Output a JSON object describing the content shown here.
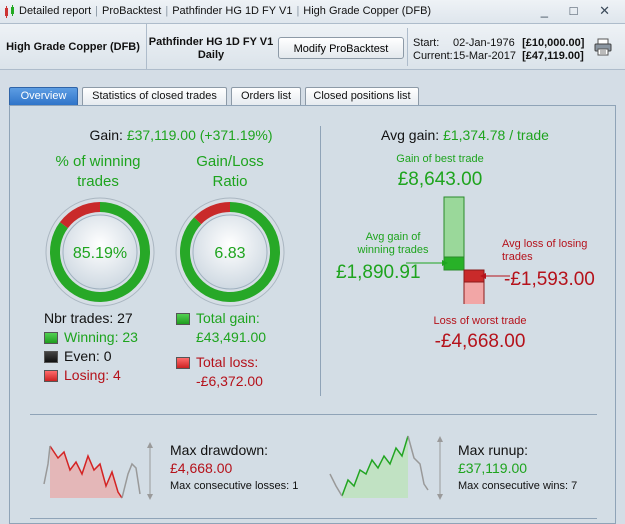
{
  "titlebar": {
    "crumbs": [
      "Detailed report",
      "ProBacktest",
      "Pathfinder HG 1D FY V1",
      "High Grade Copper (DFB)"
    ],
    "window_controls": "_ □ ✕"
  },
  "header": {
    "instrument": "High Grade Copper (DFB)",
    "strategy_name": "Pathfinder HG 1D FY V1",
    "timeframe": "Daily",
    "modify_button": "Modify ProBacktest",
    "start_label": "Start:",
    "start_date": "02-Jan-1976",
    "start_value": "[£10,000.00]",
    "current_label": "Current:",
    "current_date": "15-Mar-2017",
    "current_value": "[£47,119.00]"
  },
  "tabs": [
    {
      "label": "Overview",
      "active": true
    },
    {
      "label": "Statistics of closed trades",
      "active": false
    },
    {
      "label": "Orders list",
      "active": false
    },
    {
      "label": "Closed positions list",
      "active": false
    }
  ],
  "overview": {
    "gain_label": "Gain:",
    "gain_value": "£37,119.00 (+371.19%)",
    "win_title_1": "% of winning",
    "win_title_2": "trades",
    "win_pct_text": "85.19%",
    "win_fraction": 0.8519,
    "ratio_title_1": "Gain/Loss",
    "ratio_title_2": "Ratio",
    "ratio_text": "6.83",
    "ratio_fraction": 0.8722,
    "nbr_trades": "Nbr trades: 27",
    "winning": "Winning: 23",
    "even": "Even: 0",
    "losing": "Losing: 4",
    "total_gain_label": "Total gain:",
    "total_gain_value": "£43,491.00",
    "total_loss_label": "Total loss:",
    "total_loss_value": "-£6,372.00",
    "avg_gain_label": "Avg gain:",
    "avg_gain_value": "£1,374.78 / trade",
    "best_trade_label": "Gain of best trade",
    "best_trade_value": "£8,643.00",
    "avg_win_label_1": "Avg gain of",
    "avg_win_label_2": "winning trades",
    "avg_win_value": "£1,890.91",
    "avg_loss_label_1": "Avg loss of losing",
    "avg_loss_label_2": "trades",
    "avg_loss_value": "-£1,593.00",
    "worst_trade_label": "Loss of worst trade",
    "worst_trade_value": "-£4,668.00",
    "max_drawdown_label": "Max drawdown:",
    "max_drawdown_value": "£4,668.00",
    "max_consec_losses": "Max consecutive losses: 1",
    "max_runup_label": "Max runup:",
    "max_runup_value": "£37,119.00",
    "max_consec_wins": "Max consecutive wins: 7"
  },
  "colors": {
    "accent_blue": "#2f74c9",
    "gain_green": "#1ea41e",
    "loss_red": "#b5121b"
  },
  "icons": [
    "app-icon",
    "printer-icon"
  ]
}
